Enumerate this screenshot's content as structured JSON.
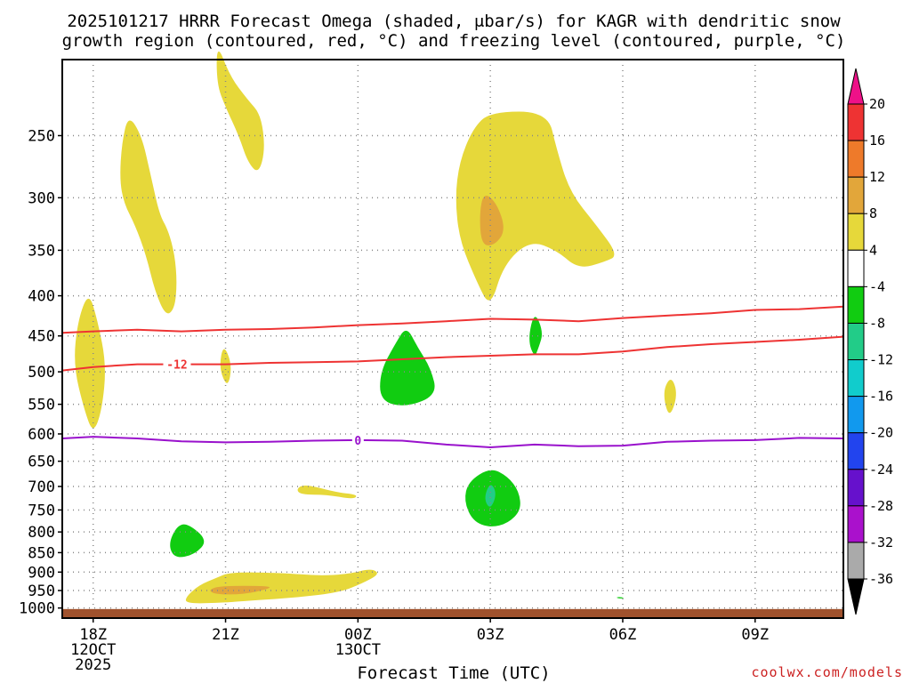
{
  "chart_data": {
    "type": "contour",
    "title_line1": "2025101217 HRRR Forecast Omega (shaded, μbar/s) for KAGR with dendritic snow",
    "title_line2": "growth region (contoured, red, °C) and freezing level (contoured, purple, °C)",
    "xlabel": "Forecast Time (UTC)",
    "ylabel": "",
    "credit": "coolwx.com/models",
    "x_ticks": [
      {
        "hour": 18,
        "label": "18Z",
        "date": "12OCT",
        "year": "2025"
      },
      {
        "hour": 21,
        "label": "21Z",
        "date": "",
        "year": ""
      },
      {
        "hour": 24,
        "label": "00Z",
        "date": "13OCT",
        "year": ""
      },
      {
        "hour": 27,
        "label": "03Z",
        "date": "",
        "year": ""
      },
      {
        "hour": 30,
        "label": "06Z",
        "date": "",
        "year": ""
      },
      {
        "hour": 33,
        "label": "09Z",
        "date": "",
        "year": ""
      }
    ],
    "x_range_hours": [
      17.3,
      35.0
    ],
    "y_ticks": [
      250,
      300,
      350,
      400,
      450,
      500,
      550,
      600,
      650,
      700,
      750,
      800,
      850,
      900,
      950,
      1000
    ],
    "y_units": "hPa",
    "y_range": [
      200,
      1030
    ],
    "ground_pressure": 1003,
    "colorbar": {
      "labels": [
        "20",
        "16",
        "12",
        "8",
        "4",
        "-4",
        "-8",
        "-12",
        "-16",
        "-20",
        "-24",
        "-28",
        "-32",
        "-36"
      ],
      "bins": [
        {
          "from": 16,
          "to": 20,
          "color": "#ee3333"
        },
        {
          "from": 12,
          "to": 16,
          "color": "#ee7a2a"
        },
        {
          "from": 8,
          "to": 12,
          "color": "#e2a63a"
        },
        {
          "from": 4,
          "to": 8,
          "color": "#e6d83a"
        },
        {
          "from": -4,
          "to": 4,
          "color": "#ffffff"
        },
        {
          "from": -8,
          "to": -4,
          "color": "#11cc11"
        },
        {
          "from": -12,
          "to": -8,
          "color": "#22cc88"
        },
        {
          "from": -16,
          "to": -12,
          "color": "#11cccc"
        },
        {
          "from": -20,
          "to": -16,
          "color": "#1199ee"
        },
        {
          "from": -24,
          "to": -20,
          "color": "#2244ee"
        },
        {
          "from": -28,
          "to": -24,
          "color": "#6611cc"
        },
        {
          "from": -32,
          "to": -28,
          "color": "#aa11cc"
        },
        {
          "from": -36,
          "to": -32,
          "color": "#aaaaaa"
        }
      ],
      "top_arrow_color": "#ee1188",
      "bottom_arrow_color": "#000000"
    },
    "omega_regions": [
      {
        "value": 5,
        "points": [
          [
            18.8,
            235
          ],
          [
            19.1,
            250
          ],
          [
            19.3,
            280
          ],
          [
            19.5,
            315
          ],
          [
            19.7,
            330
          ],
          [
            19.85,
            355
          ],
          [
            19.9,
            385
          ],
          [
            19.85,
            415
          ],
          [
            19.65,
            425
          ],
          [
            19.4,
            395
          ],
          [
            19.2,
            355
          ],
          [
            18.95,
            325
          ],
          [
            18.7,
            305
          ],
          [
            18.6,
            285
          ],
          [
            18.65,
            255
          ]
        ]
      },
      {
        "value": 5,
        "points": [
          [
            20.8,
            190
          ],
          [
            21.1,
            210
          ],
          [
            21.5,
            225
          ],
          [
            21.8,
            235
          ],
          [
            21.9,
            260
          ],
          [
            21.75,
            280
          ],
          [
            21.5,
            270
          ],
          [
            21.3,
            250
          ],
          [
            21.0,
            230
          ],
          [
            20.8,
            215
          ]
        ]
      },
      {
        "value": 5,
        "points": [
          [
            17.9,
            395
          ],
          [
            18.1,
            430
          ],
          [
            18.3,
            490
          ],
          [
            18.2,
            560
          ],
          [
            18.0,
            600
          ],
          [
            17.8,
            560
          ],
          [
            17.55,
            490
          ],
          [
            17.65,
            430
          ]
        ]
      },
      {
        "value": 5,
        "points": [
          [
            20.95,
            460
          ],
          [
            21.15,
            490
          ],
          [
            21.05,
            525
          ],
          [
            20.85,
            495
          ]
        ]
      },
      {
        "value": 5,
        "points": [
          [
            27.0,
            233
          ],
          [
            28.3,
            233
          ],
          [
            28.5,
            260
          ],
          [
            28.8,
            295
          ],
          [
            29.4,
            325
          ],
          [
            29.9,
            355
          ],
          [
            29.6,
            362
          ],
          [
            29.0,
            370
          ],
          [
            28.5,
            350
          ],
          [
            27.9,
            340
          ],
          [
            27.3,
            365
          ],
          [
            27.0,
            415
          ],
          [
            26.7,
            385
          ],
          [
            26.3,
            340
          ],
          [
            26.2,
            300
          ],
          [
            26.3,
            270
          ],
          [
            26.6,
            245
          ]
        ]
      },
      {
        "value": 10,
        "points": [
          [
            26.85,
            295
          ],
          [
            27.15,
            305
          ],
          [
            27.35,
            330
          ],
          [
            27.1,
            345
          ],
          [
            26.8,
            345
          ],
          [
            26.75,
            315
          ]
        ]
      },
      {
        "value": 5,
        "points": [
          [
            31.1,
            505
          ],
          [
            31.25,
            535
          ],
          [
            31.05,
            575
          ],
          [
            30.9,
            530
          ]
        ]
      },
      {
        "value": 5,
        "points": [
          [
            22.8,
            695
          ],
          [
            23.5,
            712
          ],
          [
            24.0,
            717
          ],
          [
            23.9,
            727
          ],
          [
            23.3,
            717
          ],
          [
            22.7,
            717
          ],
          [
            22.6,
            705
          ]
        ]
      },
      {
        "value": 5,
        "points": [
          [
            21.1,
            900
          ],
          [
            22.3,
            902
          ],
          [
            23.1,
            910
          ],
          [
            23.8,
            905
          ],
          [
            24.3,
            890
          ],
          [
            24.5,
            905
          ],
          [
            24.1,
            930
          ],
          [
            23.6,
            955
          ],
          [
            22.6,
            970
          ],
          [
            21.6,
            978
          ],
          [
            20.9,
            985
          ],
          [
            20.1,
            987
          ],
          [
            20.1,
            968
          ],
          [
            20.4,
            935
          ],
          [
            20.8,
            915
          ]
        ]
      },
      {
        "value": 10,
        "points": [
          [
            20.85,
            937
          ],
          [
            22.0,
            937
          ],
          [
            22.0,
            945
          ],
          [
            21.4,
            961
          ],
          [
            20.8,
            961
          ],
          [
            20.6,
            950
          ]
        ]
      },
      {
        "value": -5,
        "points": [
          [
            25.1,
            437
          ],
          [
            25.35,
            465
          ],
          [
            25.65,
            495
          ],
          [
            25.8,
            535
          ],
          [
            25.1,
            555
          ],
          [
            24.5,
            545
          ],
          [
            24.5,
            500
          ],
          [
            24.85,
            460
          ]
        ]
      },
      {
        "value": -5,
        "points": [
          [
            28.0,
            418
          ],
          [
            28.2,
            445
          ],
          [
            28.1,
            465
          ],
          [
            28.0,
            480
          ],
          [
            27.85,
            455
          ]
        ]
      },
      {
        "value": -5,
        "points": [
          [
            27.0,
            662
          ],
          [
            27.4,
            680
          ],
          [
            27.65,
            710
          ],
          [
            27.7,
            750
          ],
          [
            27.4,
            780
          ],
          [
            27.0,
            790
          ],
          [
            26.6,
            775
          ],
          [
            26.4,
            730
          ],
          [
            26.5,
            690
          ]
        ]
      },
      {
        "value": -10,
        "points": [
          [
            27.0,
            690
          ],
          [
            27.15,
            715
          ],
          [
            27.0,
            750
          ],
          [
            26.85,
            725
          ]
        ]
      },
      {
        "value": -5,
        "points": [
          [
            19.9,
            785
          ],
          [
            20.15,
            780
          ],
          [
            20.6,
            820
          ],
          [
            20.3,
            855
          ],
          [
            19.85,
            865
          ],
          [
            19.7,
            830
          ]
        ]
      },
      {
        "value": -5,
        "points": [
          [
            29.9,
            968
          ],
          [
            30.05,
            970
          ],
          [
            29.95,
            973
          ],
          [
            29.85,
            970
          ]
        ]
      }
    ],
    "isotherms": [
      {
        "label": "-12",
        "color": "#ee3333",
        "label_at_hour": 19.9,
        "points": [
          [
            17.3,
            498
          ],
          [
            18,
            493
          ],
          [
            19,
            489
          ],
          [
            20,
            489
          ],
          [
            21,
            489
          ],
          [
            22,
            487
          ],
          [
            23,
            486
          ],
          [
            24,
            485
          ],
          [
            25,
            482
          ],
          [
            26,
            479
          ],
          [
            27,
            477
          ],
          [
            28,
            475
          ],
          [
            29,
            475
          ],
          [
            30,
            471
          ],
          [
            31,
            465
          ],
          [
            32,
            461
          ],
          [
            33,
            458
          ],
          [
            34,
            455
          ],
          [
            35,
            451
          ]
        ]
      },
      {
        "label": "",
        "color": "#ee3333",
        "label_at_hour": null,
        "points": [
          [
            17.3,
            446
          ],
          [
            18,
            444
          ],
          [
            19,
            442
          ],
          [
            20,
            444
          ],
          [
            21,
            442
          ],
          [
            22,
            441
          ],
          [
            23,
            439
          ],
          [
            24,
            436
          ],
          [
            25,
            434
          ],
          [
            26,
            431
          ],
          [
            27,
            428
          ],
          [
            28,
            429
          ],
          [
            29,
            431
          ],
          [
            30,
            427
          ],
          [
            31,
            424
          ],
          [
            32,
            421
          ],
          [
            33,
            417
          ],
          [
            34,
            416
          ],
          [
            35,
            413
          ]
        ]
      },
      {
        "label": "0",
        "color": "#9911cc",
        "label_at_hour": 24,
        "points": [
          [
            17.3,
            608
          ],
          [
            18,
            605
          ],
          [
            19,
            608
          ],
          [
            20,
            613
          ],
          [
            21,
            615
          ],
          [
            22,
            614
          ],
          [
            23,
            612
          ],
          [
            24,
            611
          ],
          [
            25,
            612
          ],
          [
            26,
            619
          ],
          [
            27,
            624
          ],
          [
            28,
            619
          ],
          [
            29,
            622
          ],
          [
            30,
            621
          ],
          [
            31,
            614
          ],
          [
            32,
            612
          ],
          [
            33,
            611
          ],
          [
            34,
            607
          ],
          [
            35,
            608
          ]
        ]
      }
    ]
  }
}
